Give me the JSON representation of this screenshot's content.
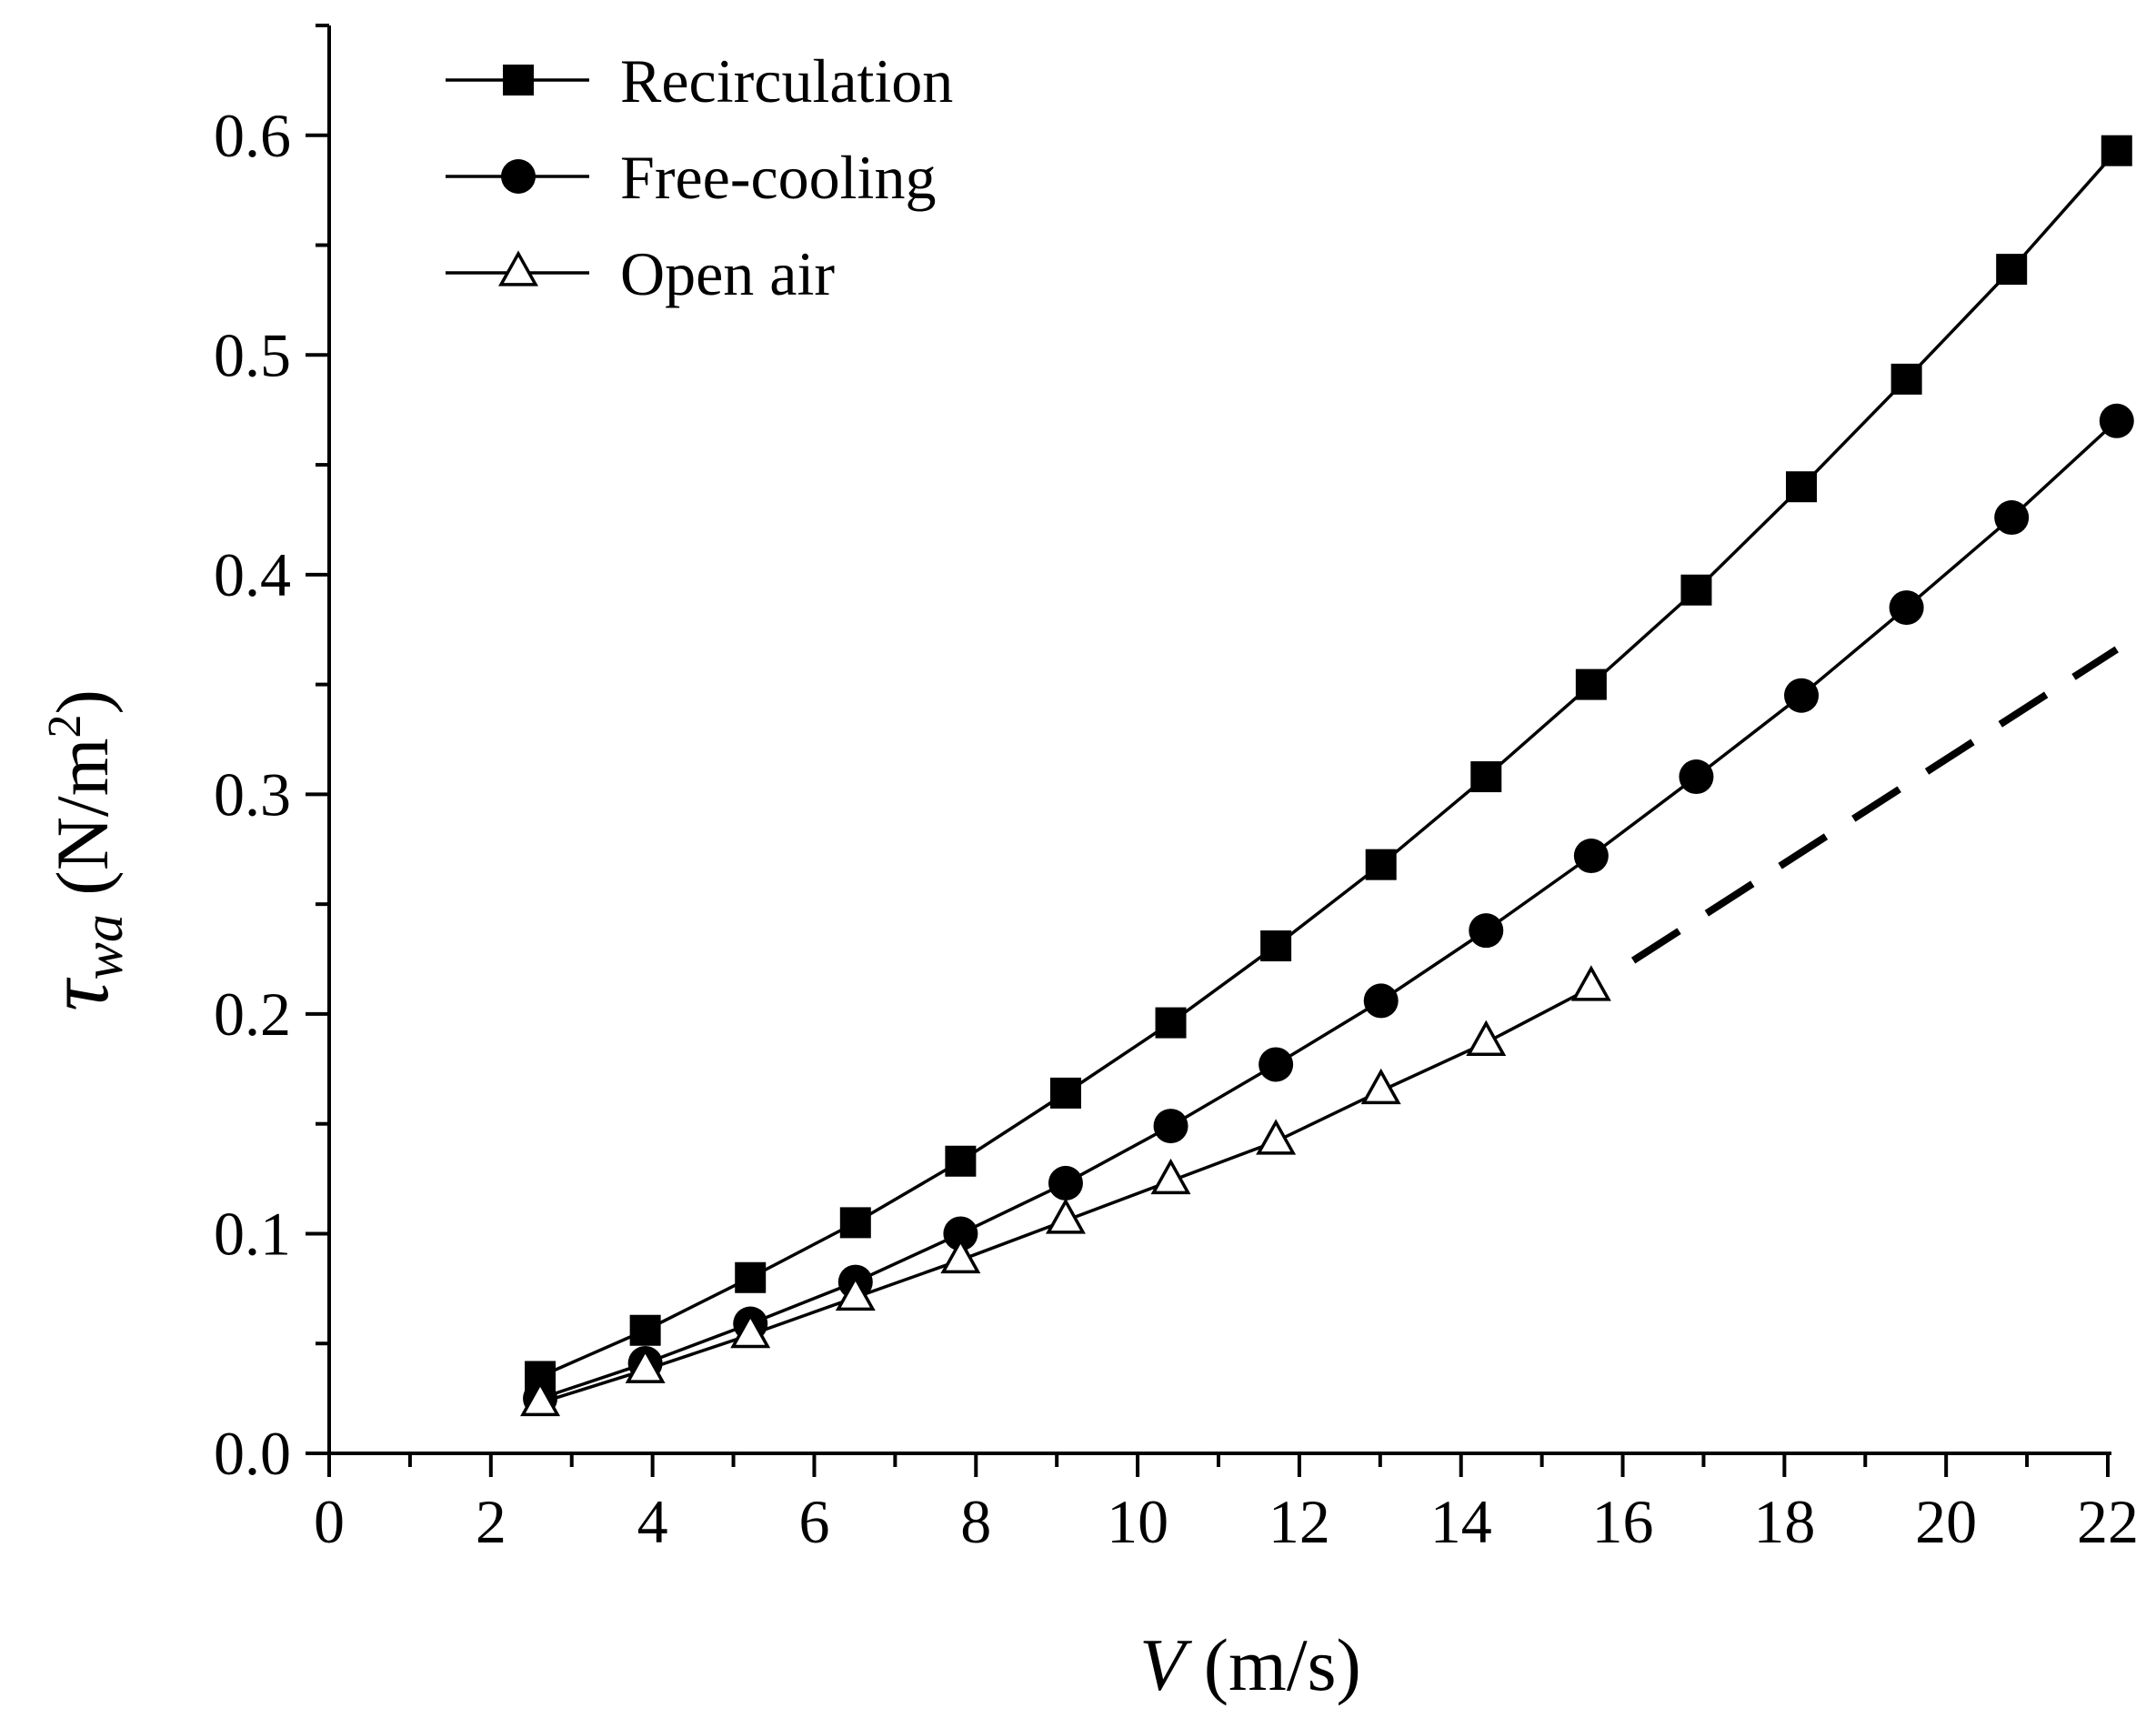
{
  "chart_data": {
    "type": "line",
    "title": "",
    "xlabel": "V (m/s)",
    "xlabel_var": "V",
    "xlabel_unit": " (m/s)",
    "ylabel": "τwa (N/m2)",
    "ylabel_symbol": "τ",
    "ylabel_sub": "wa",
    "ylabel_unit": " (N/m",
    "ylabel_unit_sup": "2",
    "ylabel_unit_close": ")",
    "xlim": [
      0,
      22
    ],
    "ylim": [
      0,
      0.65
    ],
    "xticks": [
      "0",
      "2",
      "4",
      "6",
      "8",
      "10",
      "12",
      "14",
      "16",
      "18",
      "20",
      "22"
    ],
    "yticks": [
      "0.0",
      "0.1",
      "0.2",
      "0.3",
      "0.4",
      "0.5",
      "0.6"
    ],
    "grid": false,
    "legend_position": "top-left",
    "series": [
      {
        "name": "Recirculation",
        "marker": "square-filled",
        "x": [
          2.61,
          3.91,
          5.21,
          6.51,
          7.81,
          9.11,
          10.41,
          11.71,
          13.01,
          14.31,
          15.61,
          16.91,
          18.21,
          19.51,
          20.81,
          22.11
        ],
        "values": [
          0.035,
          0.056,
          0.08,
          0.105,
          0.133,
          0.164,
          0.196,
          0.231,
          0.268,
          0.308,
          0.35,
          0.393,
          0.44,
          0.489,
          0.539,
          0.593
        ]
      },
      {
        "name": "Free-cooling",
        "marker": "circle-filled",
        "x": [
          2.61,
          3.91,
          5.21,
          6.51,
          7.81,
          9.11,
          10.41,
          11.71,
          13.01,
          14.31,
          15.61,
          16.91,
          18.21,
          19.51,
          20.81,
          22.11
        ],
        "values": [
          0.025,
          0.041,
          0.059,
          0.078,
          0.1,
          0.123,
          0.149,
          0.177,
          0.206,
          0.238,
          0.272,
          0.308,
          0.345,
          0.385,
          0.426,
          0.47
        ]
      },
      {
        "name": "Open air",
        "marker": "triangle-open",
        "x": [
          2.61,
          3.91,
          5.21,
          6.51,
          7.81,
          9.11,
          10.41,
          11.71,
          13.01,
          14.31,
          15.61
        ],
        "values": [
          0.023,
          0.038,
          0.054,
          0.071,
          0.088,
          0.106,
          0.124,
          0.142,
          0.165,
          0.187,
          0.212
        ],
        "extrapolation": {
          "style": "dashed",
          "x": [
            15.61,
            22.11
          ],
          "values": [
            0.212,
            0.366
          ]
        }
      }
    ]
  }
}
